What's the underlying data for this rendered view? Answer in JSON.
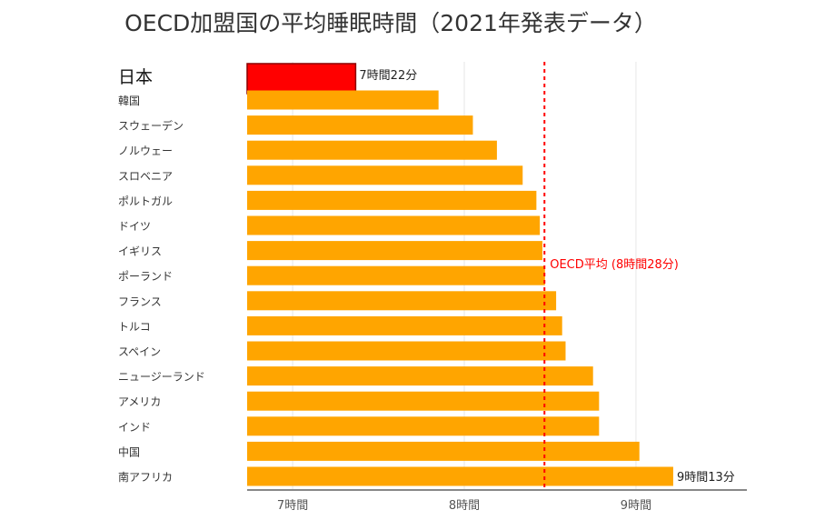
{
  "chart_data": {
    "type": "bar",
    "orientation": "horizontal",
    "title": "OECD加盟国の平均睡眠時間（2021年発表データ）",
    "categories": [
      "日本",
      "韓国",
      "スウェーデン",
      "ノルウェー",
      "スロベニア",
      "ポルトガル",
      "ドイツ",
      "イギリス",
      "ポーランド",
      "フランス",
      "トルコ",
      "スペイン",
      "ニュージーランド",
      "アメリカ",
      "インド",
      "中国",
      "南アフリカ"
    ],
    "values_hours": [
      7.367,
      7.85,
      8.05,
      8.19,
      8.34,
      8.42,
      8.44,
      8.455,
      8.47,
      8.535,
      8.57,
      8.59,
      8.75,
      8.785,
      8.785,
      9.02,
      9.217
    ],
    "highlight_category": "日本",
    "data_labels": {
      "日本": "7時間22分",
      "南アフリカ": "9時間13分"
    },
    "reference_line": {
      "value_hours": 8.467,
      "label": "OECD平均 (8時間28分)",
      "style": "dotted",
      "color": "#ff0000"
    },
    "x_ticks": [
      {
        "value": 7,
        "label": "7時間"
      },
      {
        "value": 8,
        "label": "8時間"
      },
      {
        "value": 9,
        "label": "9時間"
      }
    ],
    "xlim": [
      6.735,
      9.646
    ],
    "grid": "vertical",
    "colors": {
      "bar": "#ffa500",
      "highlight": "#ff0000",
      "highlight_border": "#8b0000",
      "reference": "#ff0000"
    }
  }
}
